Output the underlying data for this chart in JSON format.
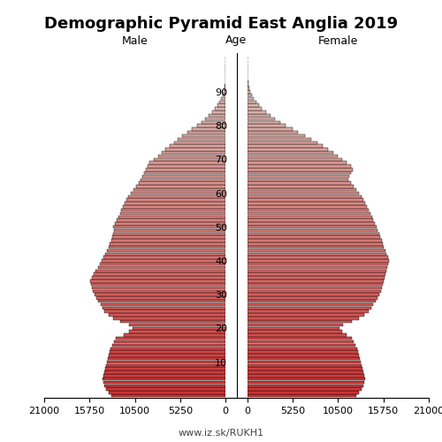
{
  "title": "Demographic Pyramid East Anglia 2019",
  "label_left": "Male",
  "label_right": "Female",
  "age_label": "Age",
  "footer": "www.iz.sk/RUKH1",
  "xlim": 21000,
  "xticks": [
    0,
    5250,
    10500,
    15750,
    21000
  ],
  "ytick_ages": [
    10,
    20,
    30,
    40,
    50,
    60,
    70,
    80,
    90
  ],
  "ages": [
    0,
    1,
    2,
    3,
    4,
    5,
    6,
    7,
    8,
    9,
    10,
    11,
    12,
    13,
    14,
    15,
    16,
    17,
    18,
    19,
    20,
    21,
    22,
    23,
    24,
    25,
    26,
    27,
    28,
    29,
    30,
    31,
    32,
    33,
    34,
    35,
    36,
    37,
    38,
    39,
    40,
    41,
    42,
    43,
    44,
    45,
    46,
    47,
    48,
    49,
    50,
    51,
    52,
    53,
    54,
    55,
    56,
    57,
    58,
    59,
    60,
    61,
    62,
    63,
    64,
    65,
    66,
    67,
    68,
    69,
    70,
    71,
    72,
    73,
    74,
    75,
    76,
    77,
    78,
    79,
    80,
    81,
    82,
    83,
    84,
    85,
    86,
    87,
    88,
    89,
    90,
    91,
    92,
    93,
    94,
    95,
    96,
    97,
    98,
    99,
    100
  ],
  "male": [
    13200,
    13500,
    13800,
    14000,
    14100,
    14200,
    14100,
    14000,
    13900,
    13800,
    13700,
    13600,
    13500,
    13400,
    13300,
    13100,
    12900,
    12700,
    11800,
    11200,
    10800,
    11200,
    12200,
    13000,
    13500,
    14000,
    14200,
    14500,
    14800,
    15000,
    15200,
    15400,
    15500,
    15600,
    15700,
    15500,
    15300,
    15100,
    14800,
    14600,
    14300,
    14100,
    13900,
    13700,
    13500,
    13400,
    13200,
    13100,
    13000,
    12900,
    13000,
    12800,
    12600,
    12400,
    12200,
    12100,
    11900,
    11700,
    11500,
    11300,
    11000,
    10700,
    10400,
    10100,
    9800,
    9600,
    9400,
    9200,
    9000,
    8800,
    8300,
    7800,
    7400,
    7000,
    6500,
    6000,
    5500,
    5000,
    4400,
    3900,
    3300,
    2800,
    2400,
    2000,
    1600,
    1200,
    950,
    700,
    500,
    350,
    220,
    150,
    100,
    60,
    40,
    25,
    15,
    10,
    6,
    3,
    2
  ],
  "female": [
    12600,
    12900,
    13200,
    13400,
    13500,
    13600,
    13500,
    13400,
    13300,
    13200,
    13100,
    13000,
    12900,
    12800,
    12700,
    12500,
    12300,
    12100,
    11500,
    11000,
    10700,
    11100,
    12100,
    12900,
    13500,
    14000,
    14300,
    14600,
    14900,
    15100,
    15300,
    15500,
    15600,
    15700,
    15800,
    15900,
    16000,
    16100,
    16200,
    16300,
    16400,
    16300,
    16100,
    16000,
    15800,
    15700,
    15600,
    15400,
    15300,
    15100,
    15000,
    14800,
    14600,
    14400,
    14200,
    14000,
    13800,
    13600,
    13400,
    13200,
    12900,
    12600,
    12300,
    12000,
    11700,
    11800,
    12000,
    12200,
    12000,
    11500,
    11000,
    10500,
    9900,
    9300,
    8700,
    8100,
    7400,
    6700,
    5900,
    5200,
    4400,
    3800,
    3200,
    2700,
    2200,
    1700,
    1300,
    1000,
    700,
    500,
    330,
    230,
    160,
    100,
    65,
    40,
    25,
    15,
    9,
    5,
    3
  ],
  "bar_color_young": "#cc3333",
  "bar_color_old": "#ddc8c0",
  "bar_edge_color": "#000000",
  "bar_linewidth": 0.3,
  "background_color": "#ffffff",
  "title_fontsize": 13,
  "label_fontsize": 9,
  "tick_fontsize": 8,
  "footer_fontsize": 8
}
